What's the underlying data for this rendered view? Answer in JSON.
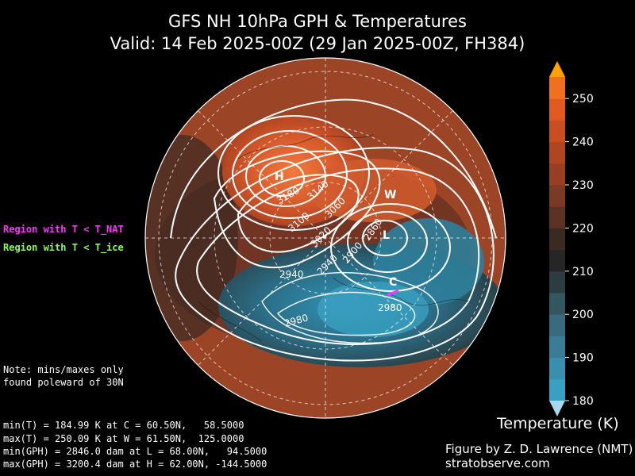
{
  "title": {
    "line1": "GFS NH 10hPa GPH & Temperatures",
    "line2": "Valid: 14 Feb 2025-00Z  (29 Jan 2025-00Z, FH384)"
  },
  "legend": {
    "nat": "Region with T < T_NAT",
    "ice": "Region with T < T_ice",
    "nat_color": "#ff33ff",
    "ice_color": "#88ff44"
  },
  "note": {
    "line1": "Note: mins/maxes only",
    "line2": "found poleward of 30N"
  },
  "stats": [
    "min(T) = 184.99 K at C = 60.50N,   58.5000",
    "max(T) = 250.09 K at W = 61.50N,  125.0000",
    "min(GPH) = 2846.0 dam at L = 68.00N,   94.5000",
    "max(GPH) = 3200.4 dam at H = 62.00N, -144.5000"
  ],
  "colorbar": {
    "title": "Temperature (K)",
    "ticks": [
      180,
      190,
      200,
      210,
      220,
      230,
      240,
      250
    ],
    "range": [
      180,
      255
    ],
    "colors": [
      "#3aa0c2",
      "#3a8fae",
      "#3a7b95",
      "#3a6a7e",
      "#34575f",
      "#2b3d40",
      "#262626",
      "#3a2a22",
      "#5a3325",
      "#7a3a24",
      "#963f22",
      "#b04522",
      "#c94e22",
      "#e05a22",
      "#f07020"
    ],
    "over_color": "#ffa200",
    "under_color": "#a8d8ef"
  },
  "map": {
    "points": {
      "H": "H",
      "L": "L",
      "W": "W",
      "C": "C"
    },
    "contour_labels": [
      "3180",
      "3140",
      "3100",
      "3060",
      "3020",
      "2980",
      "2940",
      "2900",
      "2860",
      "2940",
      "2980"
    ]
  },
  "credit": {
    "line1": "Figure by Z. D. Lawrence (NMT)",
    "line2": "stratobserve.com"
  }
}
